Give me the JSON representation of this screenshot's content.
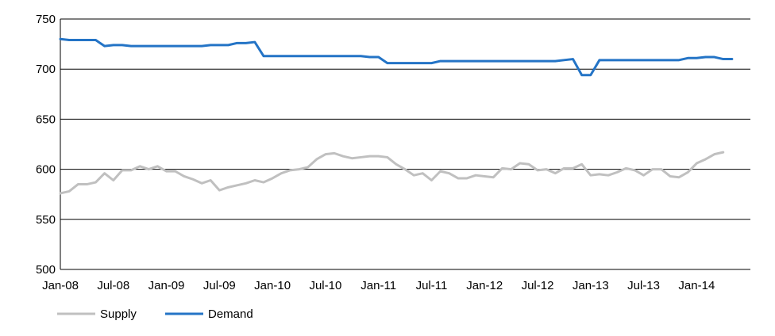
{
  "chart_data": {
    "type": "line",
    "title": "",
    "xlabel": "",
    "ylabel": "",
    "ylim": [
      500,
      750
    ],
    "yticks": [
      500,
      550,
      600,
      650,
      700,
      750
    ],
    "x_tick_labels": [
      "Jan-08",
      "Jul-08",
      "Jan-09",
      "Jul-09",
      "Jan-10",
      "Jul-10",
      "Jan-11",
      "Jul-11",
      "Jan-12",
      "Jul-12",
      "Jan-13",
      "Jul-13",
      "Jan-14"
    ],
    "x_start": "Jan-08",
    "x_end": "Jun-14",
    "grid": "horizontal",
    "legend_position": "bottom-left",
    "series": [
      {
        "name": "Supply",
        "color": "#c0c0c0",
        "values": [
          576,
          578,
          585,
          585,
          587,
          596,
          589,
          599,
          599,
          603,
          600,
          603,
          598,
          598,
          593,
          590,
          586,
          589,
          579,
          582,
          584,
          586,
          589,
          587,
          591,
          596,
          599,
          600,
          602,
          610,
          615,
          616,
          613,
          611,
          612,
          613,
          613,
          612,
          605,
          600,
          594,
          596,
          589,
          598,
          596,
          591,
          591,
          594,
          593,
          592,
          601,
          600,
          606,
          605,
          599,
          600,
          596,
          601,
          601,
          605,
          594,
          595,
          594,
          597,
          601,
          599,
          594,
          600,
          600,
          593,
          592,
          597,
          606,
          610,
          615,
          617
        ]
      },
      {
        "name": "Demand",
        "color": "#2474c6",
        "values": [
          730,
          729,
          729,
          729,
          729,
          723,
          724,
          724,
          723,
          723,
          723,
          723,
          723,
          723,
          723,
          723,
          723,
          724,
          724,
          724,
          726,
          726,
          727,
          713,
          713,
          713,
          713,
          713,
          713,
          713,
          713,
          713,
          713,
          713,
          713,
          712,
          712,
          706,
          706,
          706,
          706,
          706,
          706,
          708,
          708,
          708,
          708,
          708,
          708,
          708,
          708,
          708,
          708,
          708,
          708,
          708,
          708,
          709,
          710,
          694,
          694,
          709,
          709,
          709,
          709,
          709,
          709,
          709,
          709,
          709,
          709,
          711,
          711,
          712,
          712,
          710,
          710
        ]
      }
    ]
  }
}
